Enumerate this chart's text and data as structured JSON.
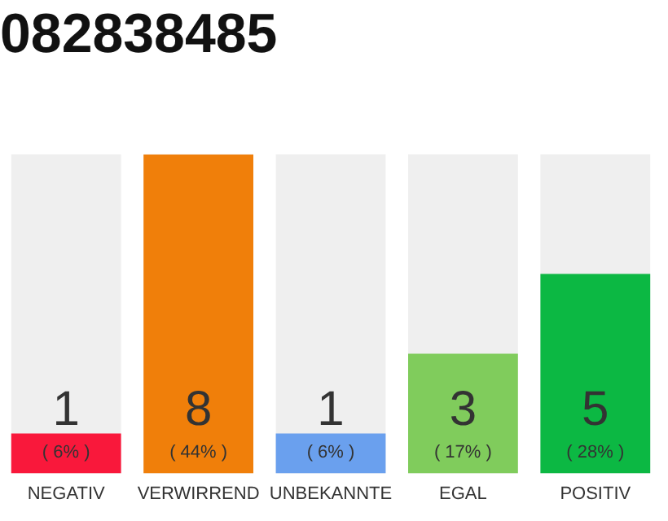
{
  "chart_data": {
    "type": "bar",
    "title": "082838485",
    "categories": [
      "NEGATIV",
      "VERWIRREND",
      "UNBEKANNTE",
      "EGAL",
      "POSITIV"
    ],
    "values": [
      1,
      8,
      1,
      3,
      5
    ],
    "colors": [
      "#f9183b",
      "#f07f0a",
      "#6aa0ee",
      "#80cc5c",
      "#0cb843"
    ],
    "data_labels": true,
    "annotations": [
      "( 6% )",
      "( 44% )",
      "( 6% )",
      "( 17% )",
      "( 28% )"
    ],
    "grid": false,
    "legend": false
  }
}
